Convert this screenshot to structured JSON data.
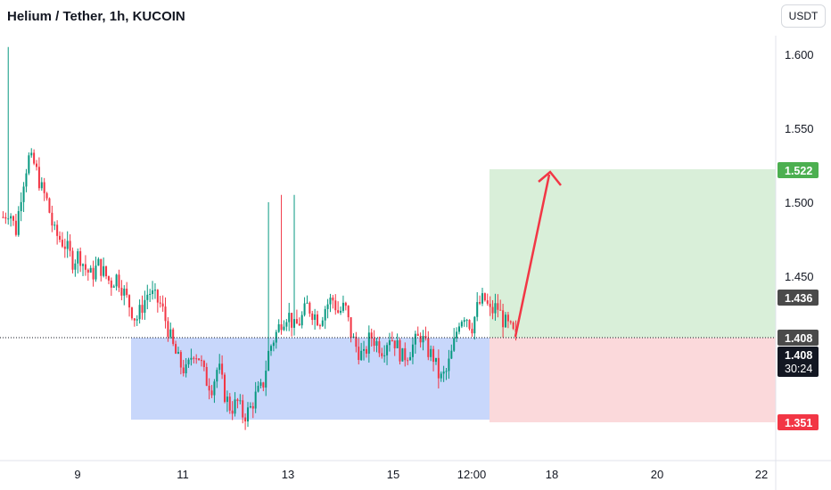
{
  "header": {
    "title": "Helium / Tether, 1h, KUCOIN",
    "currency_button": "USDT"
  },
  "price_tags": {
    "target": "1.522",
    "mid": "1.436",
    "current": "1.408",
    "countdown_price": "1.408",
    "countdown_time": "30:24",
    "stop": "1.351"
  },
  "colors": {
    "up": "#089981",
    "down": "#f23645",
    "target_zone": "#d9efd9",
    "stop_zone": "#fbd9db",
    "support_zone": "#c8d7fb",
    "arrow": "#f23645",
    "target_tag": "#4caf50",
    "stop_tag": "#f23645",
    "neutral_tag": "#4a4a4a",
    "countdown_tag": "#131722"
  },
  "chart_data": {
    "type": "candlestick",
    "x_axis_ticks": [
      "9",
      "11",
      "13",
      "15",
      "12:00",
      "18",
      "20",
      "22"
    ],
    "y_axis_ticks": [
      "1.600",
      "1.550",
      "1.500",
      "1.450"
    ],
    "ylim": [
      1.32,
      1.618
    ],
    "target_price": 1.522,
    "entry_price": 1.408,
    "stop_price": 1.351,
    "support_zone": [
      1.351,
      1.408
    ],
    "close_path": [
      1.49,
      1.495,
      1.48,
      1.51,
      1.53,
      1.525,
      1.51,
      1.5,
      1.48,
      1.475,
      1.47,
      1.46,
      1.465,
      1.455,
      1.45,
      1.458,
      1.452,
      1.445,
      1.45,
      1.44,
      1.43,
      1.42,
      1.43,
      1.44,
      1.435,
      1.43,
      1.415,
      1.4,
      1.39,
      1.385,
      1.4,
      1.395,
      1.38,
      1.375,
      1.39,
      1.37,
      1.36,
      1.365,
      1.355,
      1.36,
      1.37,
      1.375,
      1.4,
      1.41,
      1.42,
      1.425,
      1.415,
      1.42,
      1.43,
      1.425,
      1.42,
      1.43,
      1.435,
      1.425,
      1.43,
      1.41,
      1.4,
      1.395,
      1.41,
      1.405,
      1.4,
      1.41,
      1.405,
      1.395,
      1.398,
      1.405,
      1.41,
      1.4,
      1.395,
      1.38,
      1.385,
      1.4,
      1.42,
      1.425,
      1.415,
      1.43,
      1.435,
      1.425,
      1.43,
      1.42,
      1.415,
      1.408
    ],
    "spikes": [
      {
        "index": 1,
        "high": 1.605
      },
      {
        "index": 42,
        "high": 1.5
      },
      {
        "index": 44,
        "high": 1.505
      },
      {
        "index": 46,
        "high": 1.505
      }
    ]
  }
}
